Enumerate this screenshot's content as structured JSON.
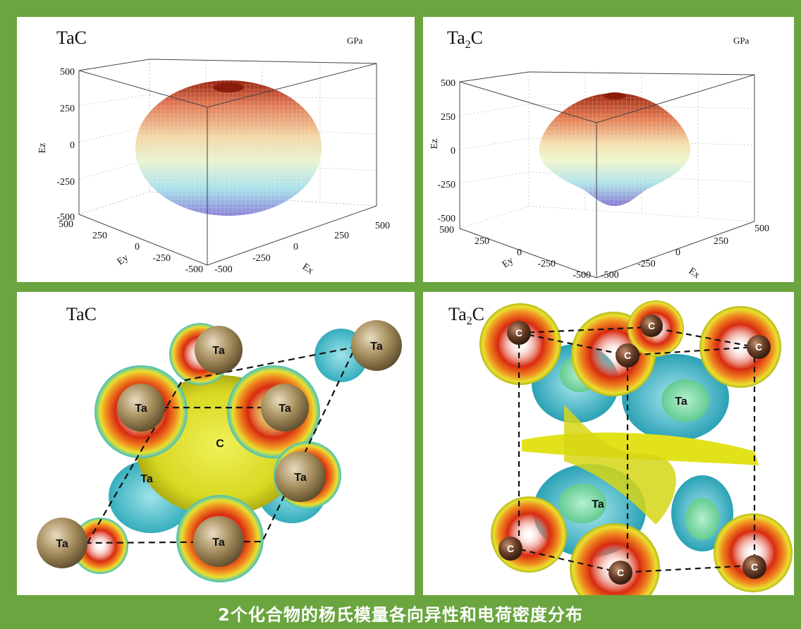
{
  "caption": "2个化合物的杨氏模量各向异性和电荷密度分布",
  "plots": [
    {
      "id": "tac-young",
      "title": "TaC",
      "title_sub": "",
      "unit": "GPa",
      "z_ticks": [
        "500",
        "250",
        "0",
        "-250",
        "-500"
      ],
      "y_ticks": [
        "500",
        "250",
        "0",
        "-250",
        "-500"
      ],
      "x_ticks": [
        "-500",
        "-250",
        "0",
        "250",
        "500"
      ],
      "z_label": "Ez",
      "y_label": "Ey",
      "x_label": "Ex"
    },
    {
      "id": "ta2c-young",
      "title": "Ta",
      "title_sub": "2",
      "title_tail": "C",
      "unit": "GPa",
      "z_ticks": [
        "500",
        "250",
        "0",
        "-250",
        "-500"
      ],
      "y_ticks": [
        "500",
        "250",
        "0",
        "-250",
        "-500"
      ],
      "x_ticks": [
        "-500",
        "-250",
        "0",
        "250",
        "500"
      ],
      "z_label": "Ez",
      "y_label": "Ey",
      "x_label": "Ex"
    }
  ],
  "charge": [
    {
      "id": "tac-charge",
      "title": "TaC",
      "atom_ta": "Ta",
      "atom_c": "C"
    },
    {
      "id": "ta2c-charge",
      "title": "Ta",
      "title_sub": "2",
      "title_tail": "C",
      "atom_ta": "Ta",
      "atom_c": "C"
    }
  ],
  "colors": {
    "frame": "#6aa53f",
    "ta_atom": "#8c7a52",
    "c_atom": "#6a3f28",
    "isosurface_yellow": "#e6e61e",
    "isosurface_cyan": "#4fc8d6",
    "isosurface_red": "#e8321e"
  }
}
